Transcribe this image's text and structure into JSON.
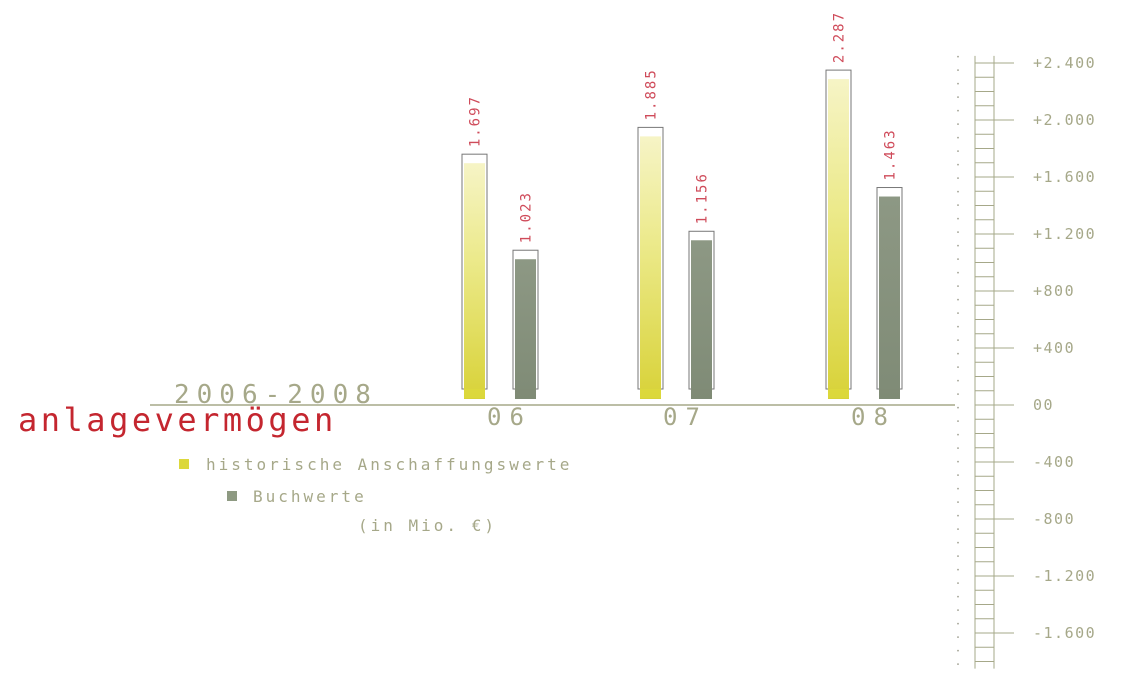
{
  "chart_data": {
    "type": "bar",
    "title": "anlagevermögen",
    "subtitle": "2006-2008",
    "unit_note": "(in Mio. €)",
    "categories": [
      "06",
      "07",
      "08"
    ],
    "series": [
      {
        "name": "historische Anschaffungswerte",
        "values": [
          1697,
          1885,
          2287
        ],
        "value_labels": [
          "1.697",
          "1.885",
          "2.287"
        ],
        "color": "#dcd83c"
      },
      {
        "name": "Buchwerte",
        "values": [
          1023,
          1156,
          1463
        ],
        "value_labels": [
          "1.023",
          "1.156",
          "1.463"
        ],
        "color": "#8e9a82"
      }
    ],
    "y_ticks": [
      {
        "value": 2400,
        "label": "+2.400"
      },
      {
        "value": 2000,
        "label": "+2.000"
      },
      {
        "value": 1600,
        "label": "+1.600"
      },
      {
        "value": 1200,
        "label": "+1.200"
      },
      {
        "value": 800,
        "label": "+800"
      },
      {
        "value": 400,
        "label": "+400"
      },
      {
        "value": 0,
        "label": "00"
      },
      {
        "value": -400,
        "label": "-400"
      },
      {
        "value": -800,
        "label": "-800"
      },
      {
        "value": -1200,
        "label": "-1.200"
      },
      {
        "value": -1600,
        "label": "-1.600"
      }
    ],
    "ylim": [
      -1850,
      2450
    ],
    "legend_position": "bottom-left",
    "grid": false
  }
}
